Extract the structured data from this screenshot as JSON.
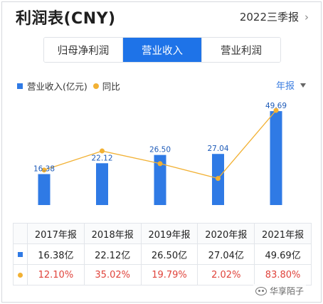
{
  "header": {
    "title": "利润表(CNY)",
    "period": "2022三季报"
  },
  "tabs": [
    {
      "label": "归母净利润",
      "active": false
    },
    {
      "label": "营业收入",
      "active": true
    },
    {
      "label": "营业利润",
      "active": false
    }
  ],
  "legend": {
    "series1": "营业收入(亿元)",
    "series2": "同比"
  },
  "freq_label": "年报",
  "colors": {
    "bar": "#2f7ae5",
    "line": "#f2b134",
    "accent": "#1e73e8",
    "negative": "#e0433b"
  },
  "chart_data": {
    "type": "bar",
    "categories": [
      "2017年报",
      "2018年报",
      "2019年报",
      "2020年报",
      "2021年报"
    ],
    "series": [
      {
        "name": "营业收入(亿元)",
        "type": "bar",
        "values": [
          16.38,
          22.12,
          26.5,
          27.04,
          49.69
        ],
        "labels": [
          "16.38",
          "22.12",
          "26.50",
          "27.04",
          "49.69"
        ]
      },
      {
        "name": "同比",
        "type": "line",
        "values": [
          12.1,
          35.02,
          19.79,
          2.02,
          83.8
        ]
      }
    ],
    "ylim": [
      0,
      55
    ],
    "y2lim": [
      -30,
      95
    ],
    "grid": false
  },
  "table": {
    "years": [
      "2017年报",
      "2018年报",
      "2019年报",
      "2020年报",
      "2021年报"
    ],
    "revenue": [
      "16.38亿",
      "22.12亿",
      "26.50亿",
      "27.04亿",
      "49.69亿"
    ],
    "yoy": [
      "12.10%",
      "35.02%",
      "19.79%",
      "2.02%",
      "83.80%"
    ]
  },
  "watermark": "华享陌子"
}
